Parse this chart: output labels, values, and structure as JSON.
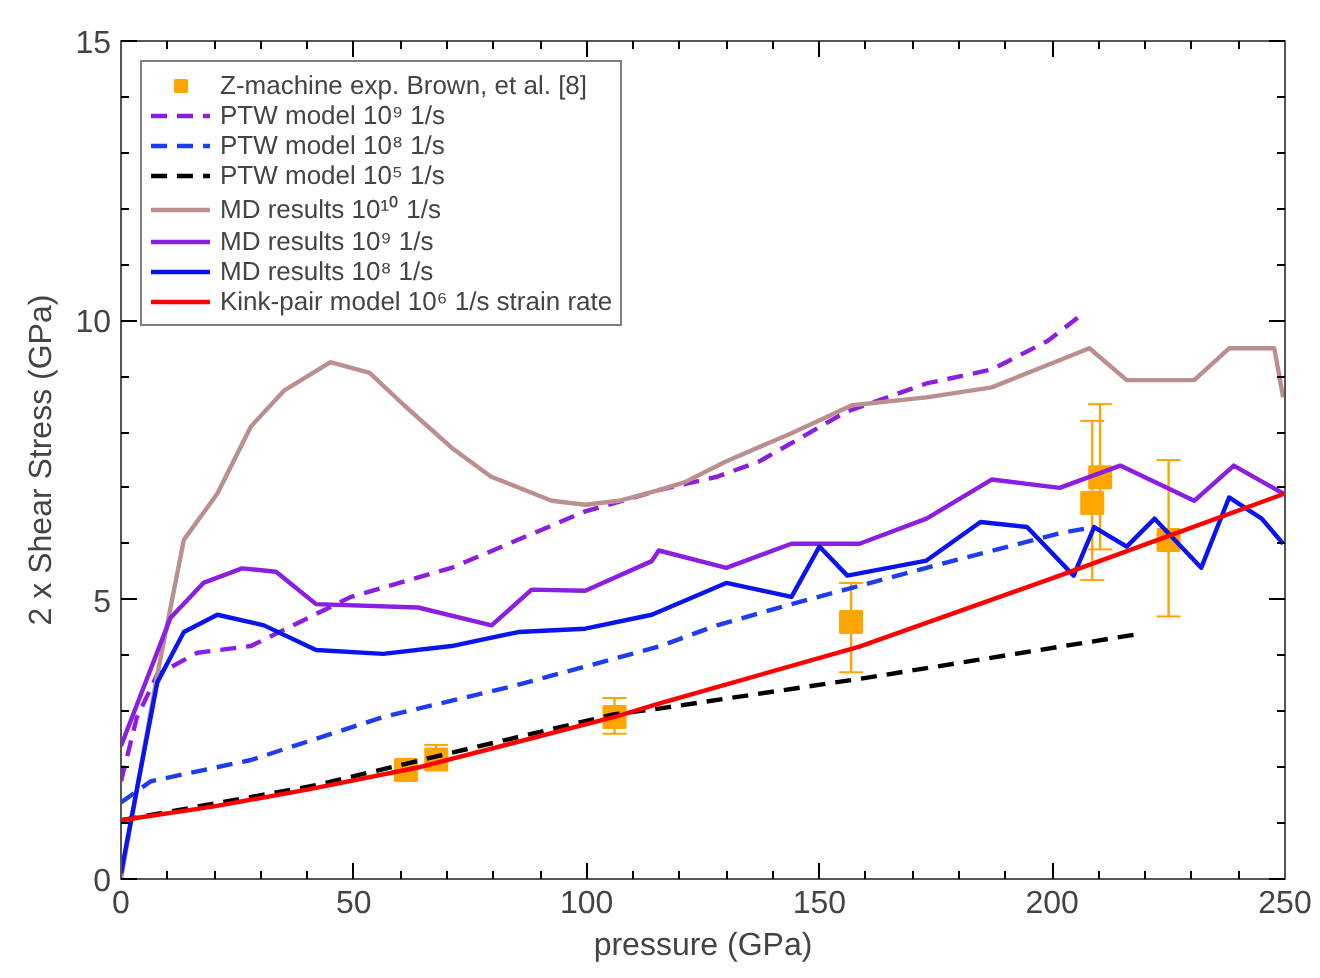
{
  "chart_data": {
    "type": "line",
    "xlabel": "pressure (GPa)",
    "ylabel": "2 x Shear Stress (GPa)",
    "xlim": [
      0,
      250
    ],
    "ylim": [
      0,
      15
    ],
    "xticks": [
      0,
      50,
      100,
      150,
      200,
      250
    ],
    "yticks": [
      0,
      5,
      10,
      15
    ],
    "grid": false,
    "legend": "top left",
    "series": [
      {
        "name": "Z-machine exp. Brown, et al. [8]",
        "type": "scatter",
        "marker": "square",
        "color": "#ffa500",
        "x": [
          61.2,
          67.7,
          106,
          156.8,
          208.6,
          210.3,
          225
        ],
        "values": [
          1.95,
          2.14,
          2.9,
          4.6,
          6.73,
          7.19,
          6.07
        ],
        "errors": [
          null,
          [
            1.97,
            2.4
          ],
          [
            2.6,
            3.24
          ],
          [
            3.7,
            5.3
          ],
          [
            5.35,
            8.2
          ],
          [
            5.9,
            8.5
          ],
          [
            4.7,
            7.5
          ]
        ]
      },
      {
        "name": "PTW model 10⁹ 1/s",
        "line_style": "dashed",
        "color": "#8b1ee0",
        "x": [
          0,
          3.4,
          7.8,
          16.4,
          27.9,
          49.4,
          71,
          99.7,
          115.5,
          128,
          137,
          155.7,
          173,
          187,
          199,
          206
        ],
        "values": [
          1.75,
          2.89,
          3.66,
          4.05,
          4.17,
          5.05,
          5.57,
          6.58,
          6.96,
          7.2,
          7.47,
          8.36,
          8.87,
          9.12,
          9.63,
          10.08
        ]
      },
      {
        "name": "PTW model 10⁸ 1/s",
        "line_style": "dashed",
        "color": "#1e3cf0",
        "x": [
          0,
          6.4,
          27.9,
          56.3,
          85,
          115.5,
          128,
          144,
          173,
          201.6,
          209
        ],
        "values": [
          1.37,
          1.75,
          2.13,
          2.9,
          3.47,
          4.16,
          4.54,
          4.92,
          5.57,
          6.19,
          6.3
        ]
      },
      {
        "name": "PTW model 10⁵ 1/s",
        "line_style": "dashed",
        "color": "#000000",
        "x": [
          0,
          20,
          42,
          68,
          106,
          115.5,
          160,
          219
        ],
        "values": [
          1.05,
          1.35,
          1.68,
          2.2,
          2.95,
          3.05,
          3.6,
          4.39
        ]
      },
      {
        "name": "MD results 10¹⁰ 1/s",
        "line_style": "solid",
        "color": "#bc8f8f",
        "x": [
          0,
          7.8,
          13.5,
          20.7,
          27.9,
          35,
          45,
          53.4,
          60.8,
          71,
          79.5,
          92.5,
          99.7,
          107,
          115.5,
          121,
          129.8,
          144,
          157,
          173,
          187,
          199,
          208,
          216,
          230.5,
          238,
          247.7,
          249.6
        ],
        "values": [
          0,
          3.66,
          6.07,
          6.9,
          8.1,
          8.74,
          9.25,
          9.06,
          8.48,
          7.72,
          7.2,
          6.77,
          6.7,
          6.77,
          6.96,
          7.1,
          7.47,
          7.98,
          8.48,
          8.62,
          8.8,
          9.2,
          9.5,
          8.93,
          8.93,
          9.5,
          9.5,
          8.62
        ]
      },
      {
        "name": "MD results 10⁹ 1/s",
        "line_style": "solid",
        "color": "#8b1ee0",
        "x": [
          0,
          10.6,
          17.7,
          26,
          33.3,
          41.9,
          63.8,
          79.6,
          88.2,
          99.7,
          114,
          115.5,
          130,
          144,
          158.6,
          173,
          187,
          201.6,
          214.6,
          230.5,
          239,
          249.6
        ],
        "values": [
          2.38,
          4.67,
          5.3,
          5.56,
          5.5,
          4.92,
          4.86,
          4.54,
          5.18,
          5.16,
          5.69,
          5.88,
          5.57,
          6.0,
          6.0,
          6.45,
          7.15,
          7.0,
          7.4,
          6.77,
          7.4,
          6.9
        ]
      },
      {
        "name": "MD results 10⁸ 1/s",
        "line_style": "solid",
        "color": "#0a14f0",
        "x": [
          0,
          3.4,
          7.8,
          13.5,
          20.7,
          30.7,
          41.9,
          56.3,
          71,
          85.3,
          99.7,
          114,
          130,
          144,
          150,
          156,
          173,
          184.6,
          194.6,
          204.6,
          209,
          216,
          222,
          232,
          238,
          245,
          249.6
        ],
        "values": [
          0.1,
          1.6,
          3.52,
          4.42,
          4.73,
          4.54,
          4.1,
          4.03,
          4.17,
          4.42,
          4.48,
          4.73,
          5.3,
          5.05,
          5.95,
          5.43,
          5.7,
          6.39,
          6.3,
          5.43,
          6.3,
          5.95,
          6.45,
          5.57,
          6.83,
          6.45,
          6.0
        ]
      },
      {
        "name": "Kink-pair model 10⁶ 1/s strain rate",
        "line_style": "solid",
        "color": "#ff0000",
        "x": [
          0,
          20,
          40,
          64,
          106,
          115.5,
          158.6,
          201.6,
          250
        ],
        "values": [
          1.05,
          1.3,
          1.6,
          2.0,
          2.9,
          3.14,
          4.16,
          5.43,
          6.9
        ]
      }
    ]
  }
}
